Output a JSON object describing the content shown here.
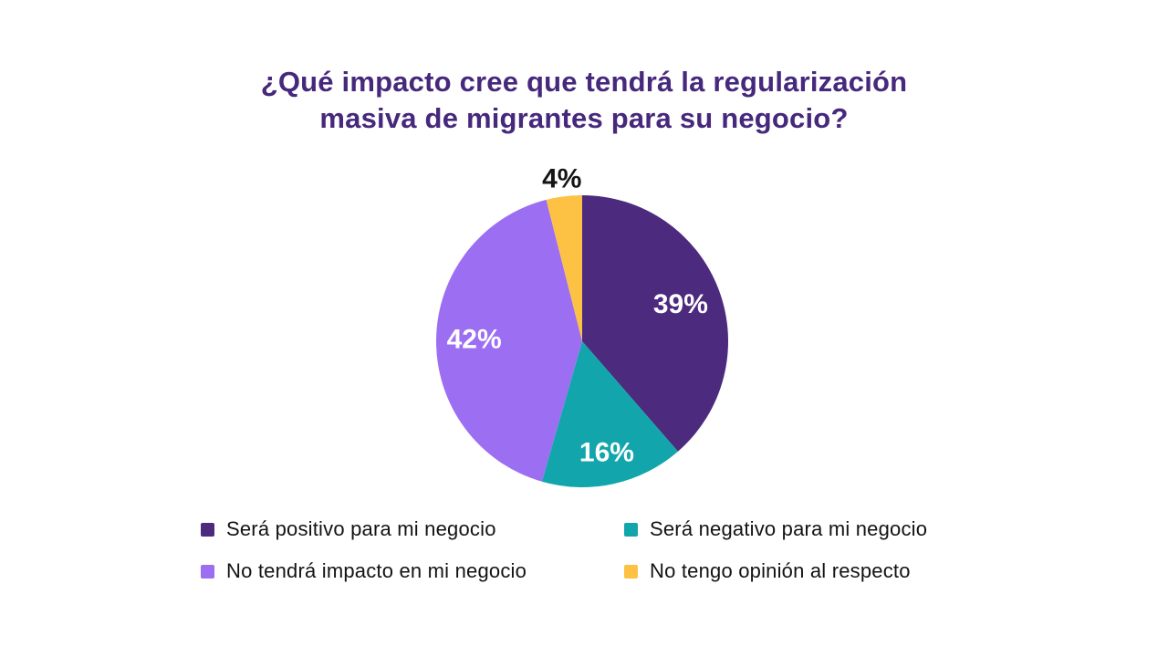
{
  "title": {
    "line1": "¿Qué impacto cree que tendrá la regularización",
    "line2": "masiva de migrantes para su negocio?"
  },
  "chart_data": {
    "type": "pie",
    "title": "¿Qué impacto cree que tendrá la regularización masiva de migrantes para su negocio?",
    "labels": [
      "Será positivo para mi negocio",
      "Será negativo para mi negocio",
      "No tendrá impacto en mi negocio",
      "No tengo opinión al respecto"
    ],
    "values": [
      39,
      16,
      42,
      4
    ],
    "unit": "%",
    "data_labels": [
      "39%",
      "16%",
      "42%",
      "4%"
    ],
    "colors": [
      "#4C2A7D",
      "#12A6AC",
      "#9C6EF2",
      "#FDC244"
    ],
    "start_angle_deg": 0,
    "direction": "clockwise",
    "legend_position": "bottom",
    "label_style": [
      {
        "r_frac": 0.72,
        "color": "#ffffff",
        "weight": "600",
        "placement": "inside"
      },
      {
        "r_frac": 0.78,
        "color": "#ffffff",
        "weight": "600",
        "placement": "inside"
      },
      {
        "r_frac": 0.74,
        "color": "#ffffff",
        "weight": "600",
        "placement": "inside"
      },
      {
        "r_frac": 1.12,
        "color": "#151515",
        "weight": "700",
        "placement": "outside"
      }
    ]
  },
  "colors": {
    "background": "#ffffff",
    "title_text": "#46287C",
    "legend_text": "#131313"
  }
}
